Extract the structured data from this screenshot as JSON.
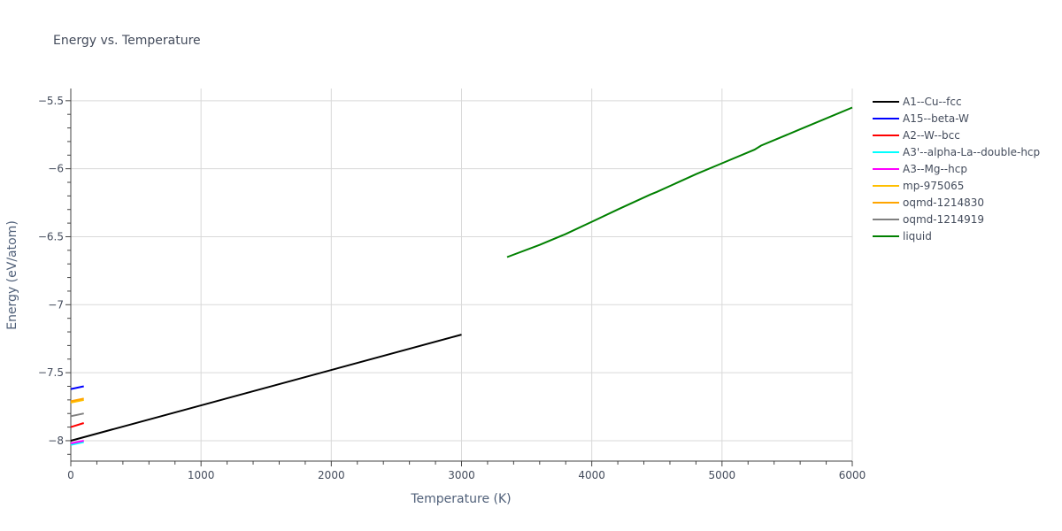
{
  "chart_data": {
    "type": "line",
    "title": "Energy vs. Temperature",
    "xlabel": "Temperature (K)",
    "ylabel": "Energy (eV/atom)",
    "xlim": [
      0,
      6000
    ],
    "ylim": [
      -8.15,
      -5.41
    ],
    "xticks": [
      0,
      1000,
      2000,
      3000,
      4000,
      5000,
      6000
    ],
    "xtick_labels": [
      "0",
      "1000",
      "2000",
      "3000",
      "4000",
      "5000",
      "6000"
    ],
    "yticks": [
      -8,
      -7.5,
      -7,
      -6.5,
      -6,
      -5.5
    ],
    "ytick_labels": [
      "−8",
      "−7.5",
      "−7",
      "−6.5",
      "−6",
      "−5.5"
    ],
    "grid": true,
    "legend_position": "right",
    "series": [
      {
        "name": "A1--Cu--fcc",
        "color": "#000000",
        "x": [
          0,
          3000
        ],
        "y": [
          -8.0,
          -7.22
        ]
      },
      {
        "name": "A15--beta-W",
        "color": "#0000ff",
        "x": [
          0,
          100
        ],
        "y": [
          -7.62,
          -7.6
        ]
      },
      {
        "name": "A2--W--bcc",
        "color": "#ff0000",
        "x": [
          0,
          100
        ],
        "y": [
          -7.9,
          -7.87
        ]
      },
      {
        "name": "A3'--alpha-La--double-hcp",
        "color": "#00ffff",
        "x": [
          0,
          100
        ],
        "y": [
          -8.03,
          -8.01
        ]
      },
      {
        "name": "A3--Mg--hcp",
        "color": "#ff00ff",
        "x": [
          0,
          100
        ],
        "y": [
          -8.02,
          -8.0
        ]
      },
      {
        "name": "mp-975065",
        "color": "#ffbf00",
        "x": [
          0,
          100
        ],
        "y": [
          -7.72,
          -7.7
        ]
      },
      {
        "name": "oqmd-1214830",
        "color": "#ffa500",
        "x": [
          0,
          100
        ],
        "y": [
          -7.71,
          -7.69
        ]
      },
      {
        "name": "oqmd-1214919",
        "color": "#808080",
        "x": [
          0,
          100
        ],
        "y": [
          -7.82,
          -7.8
        ]
      },
      {
        "name": "liquid",
        "color": "#008000",
        "x": [
          3350,
          3600,
          3800,
          4000,
          4200,
          4450,
          4500,
          4800,
          5000,
          5250,
          5300,
          5600,
          6000
        ],
        "y": [
          -6.65,
          -6.56,
          -6.48,
          -6.39,
          -6.3,
          -6.19,
          -6.17,
          -6.04,
          -5.96,
          -5.86,
          -5.83,
          -5.71,
          -5.55
        ]
      }
    ]
  }
}
